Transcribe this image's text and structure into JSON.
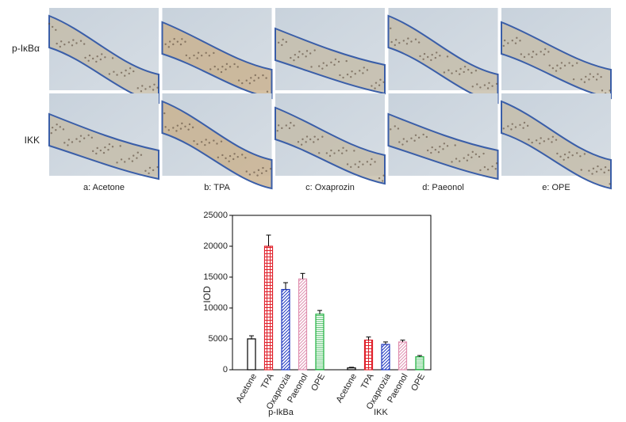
{
  "panels": {
    "rows": [
      "p-IκBα",
      "IKK"
    ],
    "columns": [
      "a: Acetone",
      "b: TPA",
      "c: Oxaprozin",
      "d: Paeonol",
      "e: OPE"
    ]
  },
  "chart_data": {
    "type": "bar",
    "ylabel": "IOD",
    "ylim": [
      0,
      25000
    ],
    "yticks": [
      0,
      5000,
      10000,
      15000,
      20000,
      25000
    ],
    "colors": [
      "#000000",
      "#e0202a",
      "#2038c0",
      "#e090b0",
      "#20b040"
    ],
    "patterns": [
      "none",
      "grid",
      "diagonal",
      "diagonal",
      "horizontal"
    ],
    "groups": [
      {
        "name": "p-IkBa",
        "categories": [
          "Acetone",
          "TPA",
          "Oxaprozia",
          "Paeonol",
          "OPE"
        ],
        "values": [
          5000,
          20000,
          13000,
          14700,
          9000
        ],
        "errors": [
          500,
          1800,
          1100,
          900,
          600
        ]
      },
      {
        "name": "IKK",
        "categories": [
          "Acetone",
          "TPA",
          "Oxaprozia",
          "Paeonol",
          "OPE"
        ],
        "values": [
          300,
          4800,
          4100,
          4500,
          2100
        ],
        "errors": [
          100,
          500,
          400,
          300,
          200
        ]
      }
    ]
  }
}
